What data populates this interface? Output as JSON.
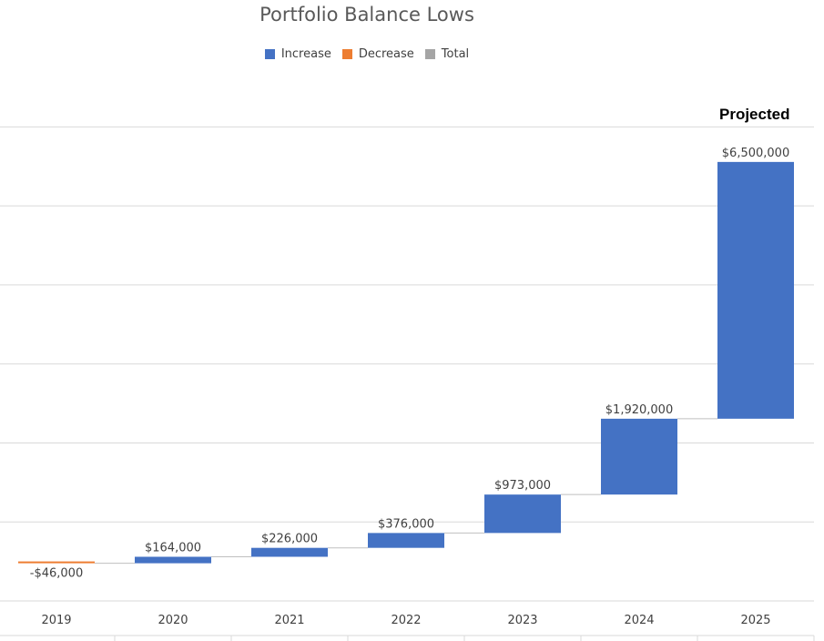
{
  "chart_data": {
    "type": "bar",
    "subtype": "waterfall",
    "title": "Portfolio Balance Lows",
    "annotation": "Projected",
    "legend": {
      "placement": "top-center",
      "entries": [
        {
          "name": "Increase",
          "color": "#4472C4"
        },
        {
          "name": "Decrease",
          "color": "#ED7D31"
        },
        {
          "name": "Total",
          "color": "#A5A5A5"
        }
      ]
    },
    "categories": [
      "2019",
      "2020",
      "2021",
      "2022",
      "2023",
      "2024",
      "2025"
    ],
    "values": [
      -46000,
      164000,
      226000,
      376000,
      973000,
      1920000,
      6500000
    ],
    "labels": [
      "-$46,000",
      "$164,000",
      "$226,000",
      "$376,000",
      "$973,000",
      "$1,920,000",
      "$6,500,000"
    ],
    "ylim": [
      -1000000,
      12000000
    ],
    "grid": true
  }
}
